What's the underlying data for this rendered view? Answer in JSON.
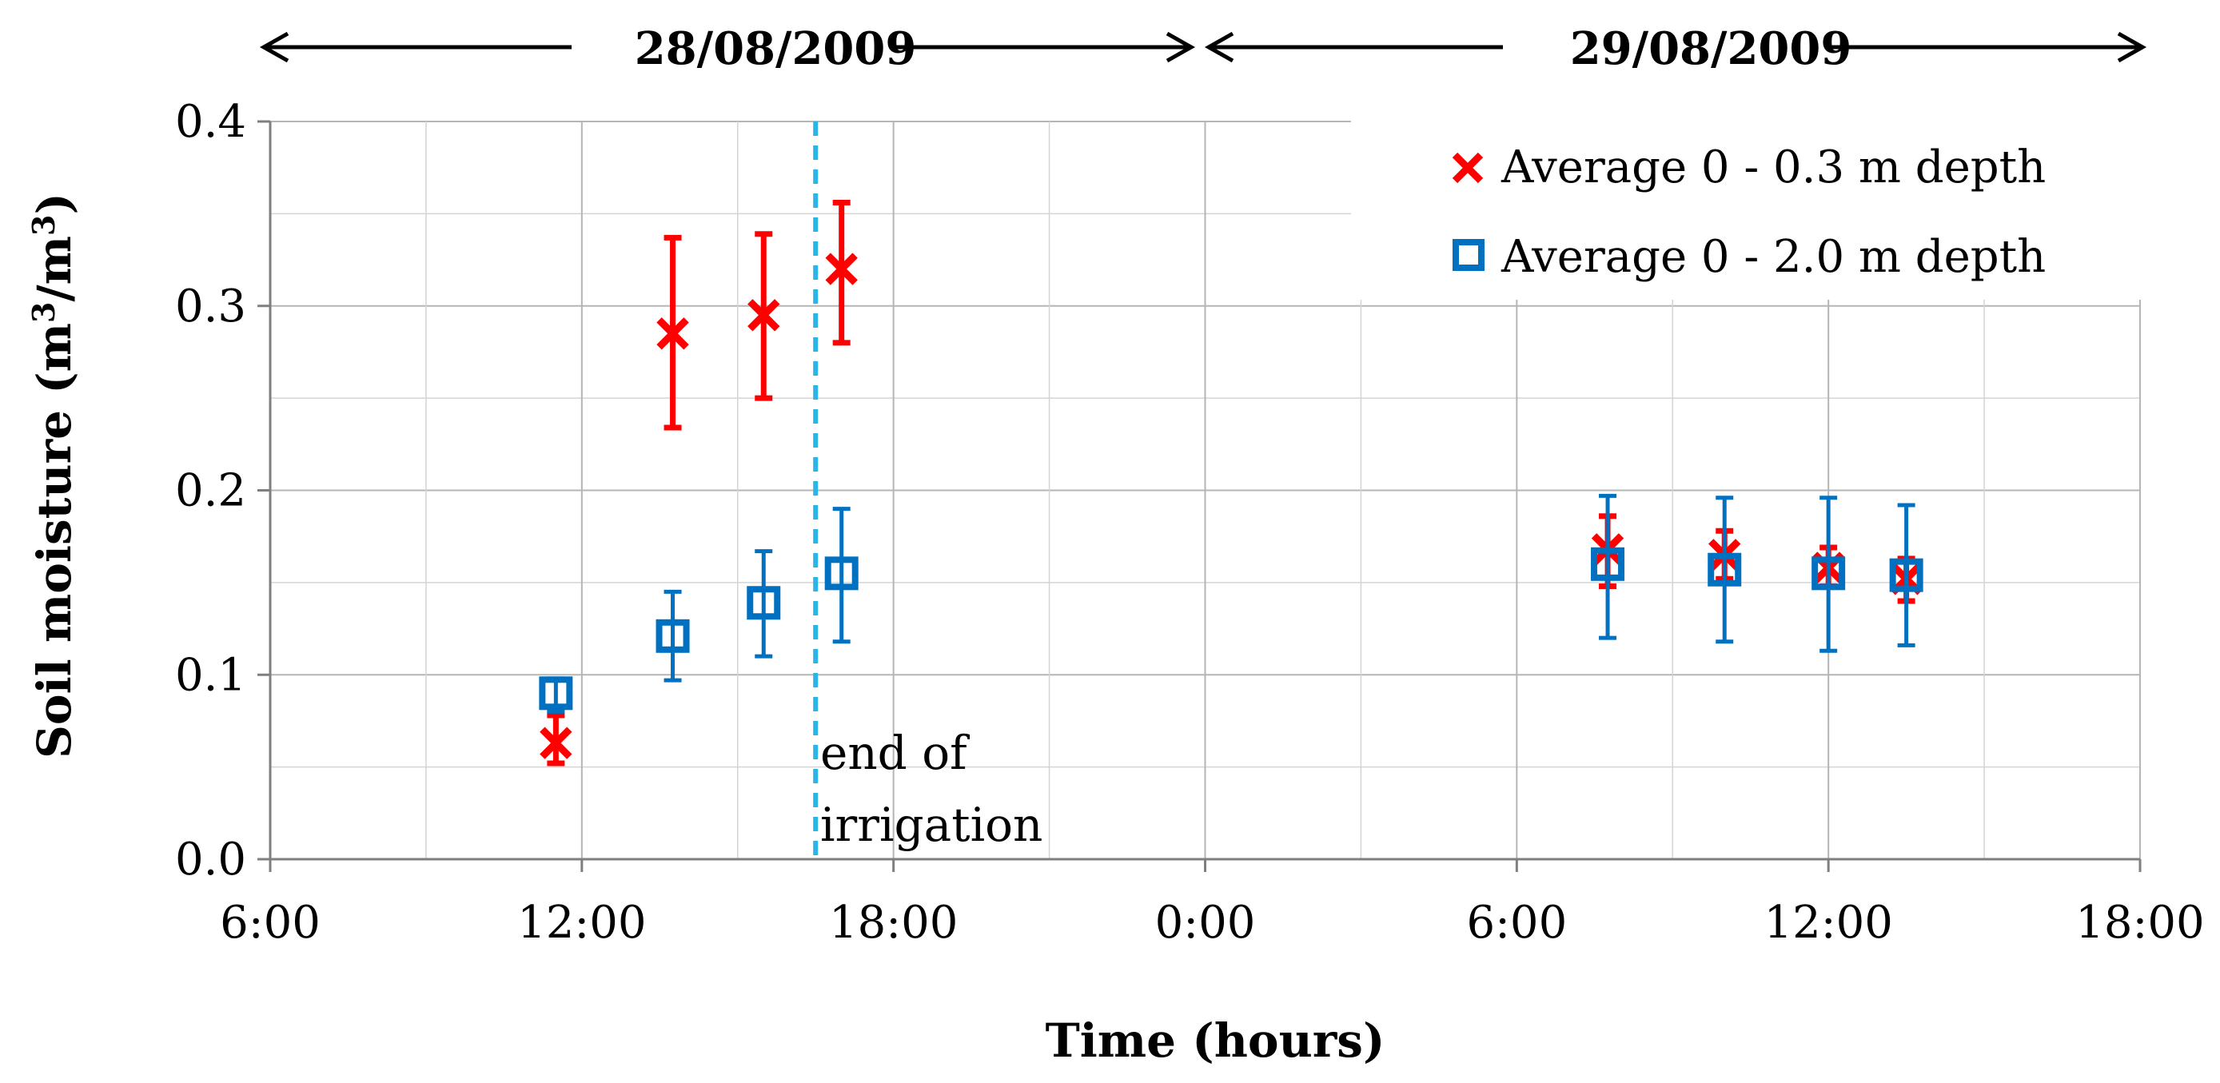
{
  "chart_data": {
    "type": "scatter",
    "xlabel": "Time (hours)",
    "ylabel_main": "Soil moisture (m",
    "ylabel_sup1": "3",
    "ylabel_mid": "/m",
    "ylabel_sup2": "3",
    "ylabel_end": ")",
    "ylim": [
      0,
      0.4
    ],
    "y_ticks": [
      "0.0",
      "0.1",
      "0.2",
      "0.3",
      "0.4"
    ],
    "x_range_hours": [
      6,
      42
    ],
    "x_ticks": [
      "6:00",
      "12:00",
      "18:00",
      "0:00",
      "6:00",
      "12:00",
      "18:00"
    ],
    "date_spans": [
      "28/08/2009",
      "29/08/2009"
    ],
    "vline": {
      "x_hours": 16.5,
      "label_line1": "end of",
      "label_line2": "irrigation",
      "color": "#29b5e8"
    },
    "grid": true,
    "legend_position": "top-right",
    "series": [
      {
        "name": "Average 0 - 0.3 m depth",
        "marker": "x",
        "color": "#ff0000",
        "points": [
          {
            "x": 11.5,
            "y": 0.063,
            "lo": 0.052,
            "hi": 0.078
          },
          {
            "x": 13.75,
            "y": 0.285,
            "lo": 0.234,
            "hi": 0.337
          },
          {
            "x": 15.5,
            "y": 0.295,
            "lo": 0.25,
            "hi": 0.339
          },
          {
            "x": 17.0,
            "y": 0.32,
            "lo": 0.28,
            "hi": 0.356
          },
          {
            "x": 31.75,
            "y": 0.168,
            "lo": 0.148,
            "hi": 0.186
          },
          {
            "x": 34.0,
            "y": 0.165,
            "lo": 0.152,
            "hi": 0.178
          },
          {
            "x": 36.0,
            "y": 0.158,
            "lo": 0.148,
            "hi": 0.169
          },
          {
            "x": 37.5,
            "y": 0.152,
            "lo": 0.14,
            "hi": 0.163
          }
        ]
      },
      {
        "name": "Average 0 - 2.0 m depth",
        "marker": "square",
        "color": "#0070c0",
        "points": [
          {
            "x": 11.5,
            "y": 0.09,
            "lo": 0.08,
            "hi": 0.098
          },
          {
            "x": 13.75,
            "y": 0.121,
            "lo": 0.097,
            "hi": 0.145
          },
          {
            "x": 15.5,
            "y": 0.139,
            "lo": 0.11,
            "hi": 0.167
          },
          {
            "x": 17.0,
            "y": 0.155,
            "lo": 0.118,
            "hi": 0.19
          },
          {
            "x": 31.75,
            "y": 0.16,
            "lo": 0.12,
            "hi": 0.197
          },
          {
            "x": 34.0,
            "y": 0.157,
            "lo": 0.118,
            "hi": 0.196
          },
          {
            "x": 36.0,
            "y": 0.155,
            "lo": 0.113,
            "hi": 0.196
          },
          {
            "x": 37.5,
            "y": 0.154,
            "lo": 0.116,
            "hi": 0.192
          }
        ]
      }
    ]
  }
}
